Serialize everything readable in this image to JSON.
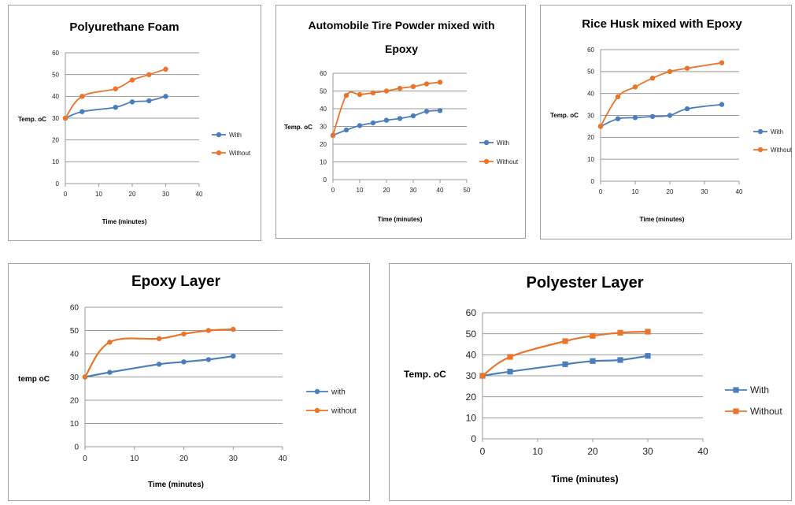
{
  "colors": {
    "with": "#4a7ebb",
    "without": "#e9742a",
    "grid": "#9a9a9a",
    "axis": "#9a9a9a"
  },
  "chart_data": [
    {
      "type": "line",
      "title": "Polyurethane Foam",
      "xlabel": "Time (minutes)",
      "ylabel": "Temp. oC",
      "xlim": [
        0,
        40
      ],
      "xticks": [
        0,
        10,
        20,
        30,
        40
      ],
      "ylim": [
        0,
        60
      ],
      "yticks": [
        0,
        10,
        20,
        30,
        40,
        50,
        60
      ],
      "series": [
        {
          "name": "With",
          "x": [
            0,
            5,
            15,
            20,
            25,
            30
          ],
          "y": [
            30,
            33,
            35,
            37.5,
            38,
            40
          ]
        },
        {
          "name": "Without",
          "x": [
            0,
            5,
            15,
            20,
            25,
            30
          ],
          "y": [
            30,
            40,
            43.5,
            47.5,
            50,
            52.5
          ]
        }
      ]
    },
    {
      "type": "line",
      "title": [
        "Automobile Tire Powder mixed with",
        "Epoxy"
      ],
      "xlabel": "Time (minutes)",
      "ylabel": "Temp. oC",
      "xlim": [
        0,
        50
      ],
      "xticks": [
        0,
        10,
        20,
        30,
        40,
        50
      ],
      "ylim": [
        0,
        60
      ],
      "yticks": [
        0,
        10,
        20,
        30,
        40,
        50,
        60
      ],
      "series": [
        {
          "name": "With",
          "x": [
            0,
            5,
            10,
            15,
            20,
            25,
            30,
            35,
            40
          ],
          "y": [
            25,
            28,
            30.5,
            32,
            33.5,
            34.5,
            36,
            38.5,
            39
          ]
        },
        {
          "name": "Without",
          "x": [
            0,
            5,
            10,
            15,
            20,
            25,
            30,
            35,
            40
          ],
          "y": [
            25,
            47.5,
            48,
            49,
            50,
            51.5,
            52.5,
            54,
            55
          ]
        }
      ]
    },
    {
      "type": "line",
      "title": "Rice Husk mixed with Epoxy",
      "xlabel": "Time (minutes)",
      "ylabel": "Temp. oC",
      "xlim": [
        0,
        40
      ],
      "xticks": [
        0,
        10,
        20,
        30,
        40
      ],
      "ylim": [
        0,
        60
      ],
      "yticks": [
        0,
        10,
        20,
        30,
        40,
        50,
        60
      ],
      "series": [
        {
          "name": "With",
          "x": [
            0,
            5,
            10,
            15,
            20,
            25,
            35
          ],
          "y": [
            25,
            28.5,
            29,
            29.5,
            30,
            33,
            35
          ]
        },
        {
          "name": "Without",
          "x": [
            0,
            5,
            10,
            15,
            20,
            25,
            35
          ],
          "y": [
            25,
            38.5,
            43,
            47,
            50,
            51.5,
            54
          ]
        }
      ]
    },
    {
      "type": "line",
      "title": "Epoxy Layer",
      "xlabel": "Time (minutes)",
      "ylabel": "temp oC",
      "xlim": [
        0,
        40
      ],
      "xticks": [
        0,
        10,
        20,
        30,
        40
      ],
      "ylim": [
        0,
        60
      ],
      "yticks": [
        0,
        10,
        20,
        30,
        40,
        50,
        60
      ],
      "series": [
        {
          "name": "with",
          "x": [
            0,
            5,
            15,
            20,
            25,
            30
          ],
          "y": [
            30,
            32,
            35.5,
            36.5,
            37.5,
            39
          ]
        },
        {
          "name": "without",
          "x": [
            0,
            5,
            15,
            20,
            25,
            30
          ],
          "y": [
            30,
            45,
            46.5,
            48.5,
            50,
            50.5
          ]
        }
      ]
    },
    {
      "type": "line",
      "title": "Polyester Layer",
      "xlabel": "Time (minutes)",
      "ylabel": "Temp. oC",
      "xlim": [
        0,
        40
      ],
      "xticks": [
        0,
        10,
        20,
        30,
        40
      ],
      "ylim": [
        0,
        60
      ],
      "yticks": [
        0,
        10,
        20,
        30,
        40,
        50,
        60
      ],
      "series": [
        {
          "name": "With",
          "x": [
            0,
            5,
            15,
            20,
            25,
            30
          ],
          "y": [
            30,
            32,
            35.5,
            37,
            37.5,
            39.5
          ]
        },
        {
          "name": "Without",
          "x": [
            0,
            5,
            15,
            20,
            25,
            30
          ],
          "y": [
            30,
            39,
            46.5,
            49,
            50.5,
            51
          ]
        }
      ]
    }
  ]
}
